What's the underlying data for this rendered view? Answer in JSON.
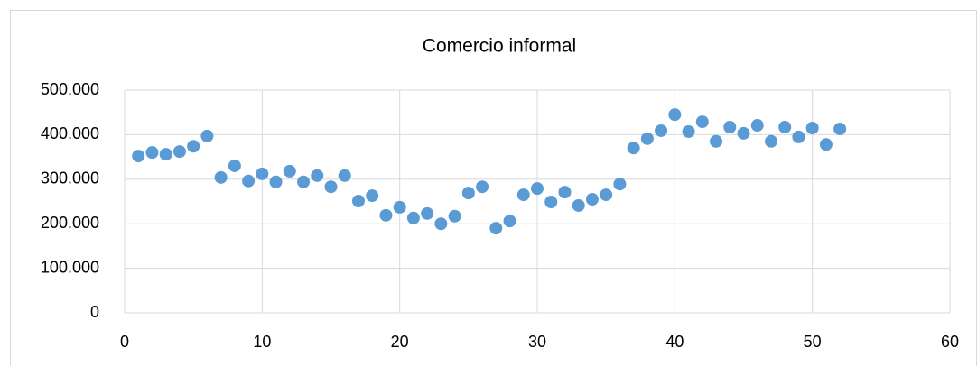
{
  "chart_data": {
    "type": "scatter",
    "title": "Comercio informal",
    "x": [
      1,
      2,
      3,
      4,
      5,
      6,
      7,
      8,
      9,
      10,
      11,
      12,
      13,
      14,
      15,
      16,
      17,
      18,
      19,
      20,
      21,
      22,
      23,
      24,
      25,
      26,
      27,
      28,
      29,
      30,
      31,
      32,
      33,
      34,
      35,
      36,
      37,
      38,
      39,
      40,
      41,
      42,
      43,
      44,
      45,
      46,
      47,
      48,
      49,
      50,
      51,
      52
    ],
    "series": [
      {
        "name": "Comercio informal",
        "color": "#5b9bd5",
        "values": [
          352000,
          360000,
          356000,
          362000,
          374000,
          397000,
          304000,
          330000,
          296000,
          312000,
          294000,
          318000,
          294000,
          308000,
          283000,
          308000,
          251000,
          263000,
          219000,
          237000,
          213000,
          223000,
          200000,
          217000,
          269000,
          283000,
          190000,
          206000,
          265000,
          279000,
          249000,
          271000,
          241000,
          255000,
          265000,
          289000,
          370000,
          391000,
          409000,
          445000,
          407000,
          429000,
          385000,
          417000,
          403000,
          421000,
          385000,
          417000,
          395000,
          415000,
          378000,
          413000
        ]
      }
    ],
    "xlim": [
      0,
      60
    ],
    "xticks": [
      0,
      10,
      20,
      30,
      40,
      50,
      60
    ],
    "ylim": [
      0,
      500000
    ],
    "yticks": [
      0,
      {
        "value": 100000,
        "label": "100.000"
      },
      {
        "value": 200000,
        "label": "200.000"
      },
      {
        "value": 300000,
        "label": "300.000"
      },
      {
        "value": 400000,
        "label": "400.000"
      },
      {
        "value": 500000,
        "label": "500.000"
      }
    ],
    "grid": true
  }
}
